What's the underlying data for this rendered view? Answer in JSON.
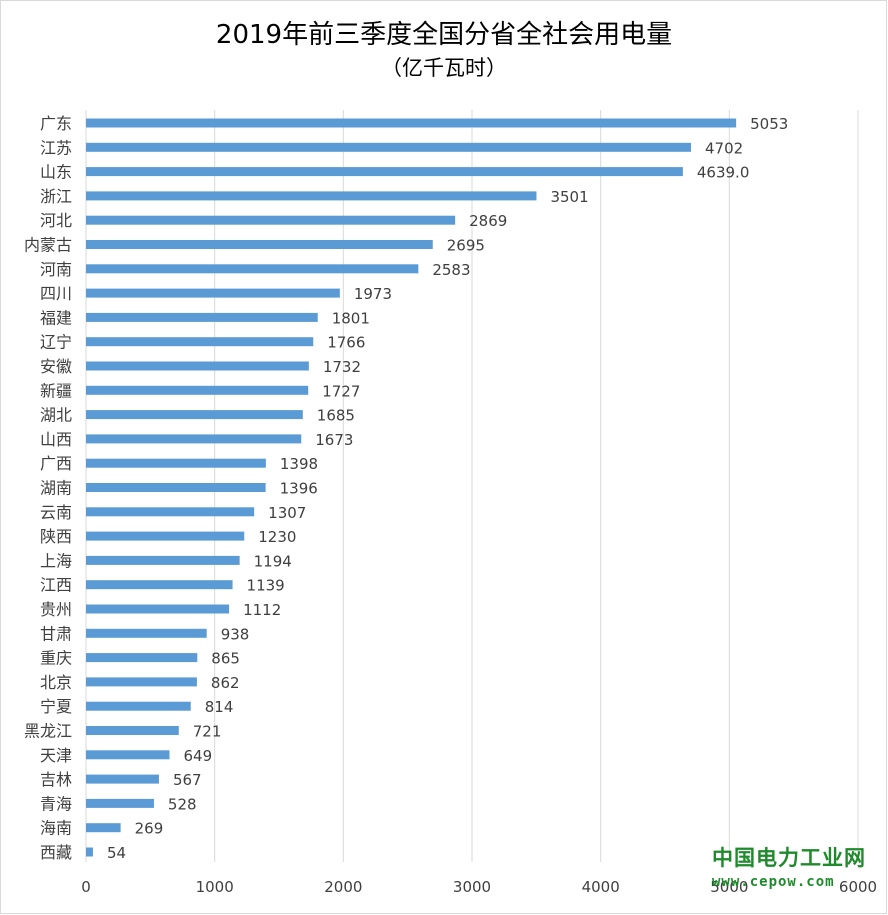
{
  "chart_data": {
    "type": "bar",
    "orientation": "horizontal",
    "title": "2019年前三季度全国分省全社会用电量",
    "subtitle": "（亿千瓦时）",
    "categories": [
      "广东",
      "江苏",
      "山东",
      "浙江",
      "河北",
      "内蒙古",
      "河南",
      "四川",
      "福建",
      "辽宁",
      "安徽",
      "新疆",
      "湖北",
      "山西",
      "广西",
      "湖南",
      "云南",
      "陕西",
      "上海",
      "江西",
      "贵州",
      "甘肃",
      "重庆",
      "北京",
      "宁夏",
      "黑龙江",
      "天津",
      "吉林",
      "青海",
      "海南",
      "西藏"
    ],
    "values": [
      5053,
      4702,
      4639.0,
      3501,
      2869,
      2695,
      2583,
      1973,
      1801,
      1766,
      1732,
      1727,
      1685,
      1673,
      1398,
      1396,
      1307,
      1230,
      1194,
      1139,
      1112,
      938,
      865,
      862,
      814,
      721,
      649,
      567,
      528,
      269,
      54
    ],
    "value_labels": [
      "5053",
      "4702",
      "4639.0",
      "3501",
      "2869",
      "2695",
      "2583",
      "1973",
      "1801",
      "1766",
      "1732",
      "1727",
      "1685",
      "1673",
      "1398",
      "1396",
      "1307",
      "1230",
      "1194",
      "1139",
      "1112",
      "938",
      "865",
      "862",
      "814",
      "721",
      "649",
      "567",
      "528",
      "269",
      "54"
    ],
    "xlim": [
      0,
      6000
    ],
    "ticks": [
      "0",
      "1000",
      "2000",
      "3000",
      "4000",
      "5000",
      "6000"
    ],
    "bar_color": "#5b9bd5",
    "grid": true,
    "legend": "none"
  },
  "watermark": {
    "name": "中国电力工业网",
    "url": "www.cepow.com",
    "color": "#1f8a2c"
  }
}
